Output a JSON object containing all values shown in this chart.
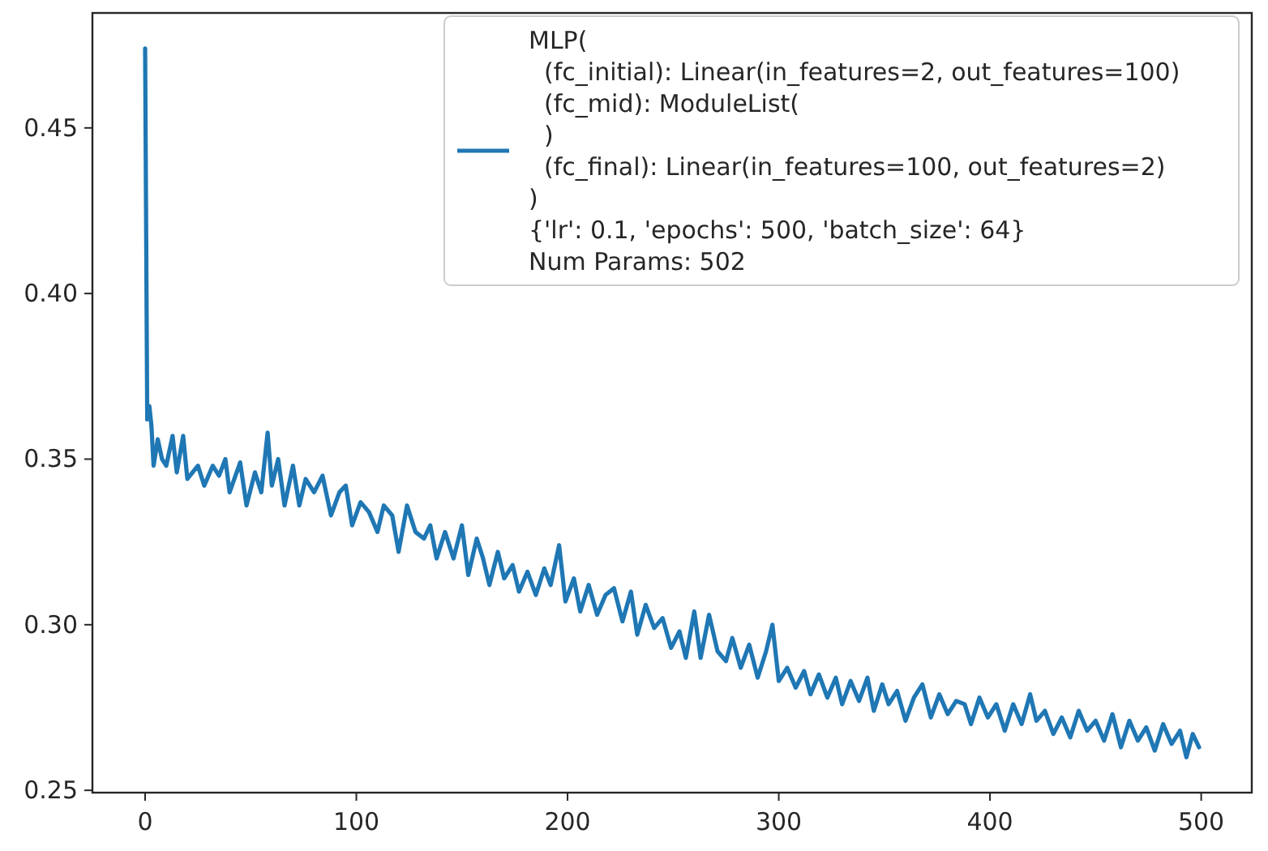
{
  "chart_data": {
    "type": "line",
    "xlim": [
      -24.95,
      523.95
    ],
    "ylim": [
      0.2493,
      0.4847
    ],
    "xticks": [
      0,
      100,
      200,
      300,
      400,
      500
    ],
    "yticks": [
      {
        "value": 0.25,
        "label": "0.25"
      },
      {
        "value": 0.3,
        "label": "0.30"
      },
      {
        "value": 0.35,
        "label": "0.35"
      },
      {
        "value": 0.4,
        "label": "0.40"
      },
      {
        "value": 0.45,
        "label": "0.45"
      }
    ],
    "legend": "top right",
    "grid": false,
    "series": [
      {
        "name": "MLP(\n  (fc_initial): Linear(in_features=2, out_features=100)\n  (fc_mid): ModuleList(\n  )\n  (fc_final): Linear(in_features=100, out_features=2)\n)\n{'lr': 0.1, 'epochs': 500, 'batch_size': 64}\nNum Params: 502",
        "color": "#1f77b4",
        "x": [
          0,
          1,
          2,
          3,
          4,
          6,
          8,
          10,
          13,
          15,
          18,
          20,
          25,
          28,
          32,
          35,
          38,
          40,
          45,
          48,
          52,
          55,
          58,
          60,
          63,
          66,
          70,
          73,
          76,
          80,
          84,
          88,
          92,
          95,
          98,
          102,
          106,
          110,
          113,
          117,
          120,
          124,
          128,
          132,
          135,
          138,
          142,
          146,
          150,
          153,
          157,
          160,
          163,
          167,
          170,
          174,
          177,
          181,
          185,
          189,
          192,
          196,
          199,
          203,
          206,
          210,
          214,
          218,
          222,
          226,
          230,
          233,
          237,
          241,
          245,
          249,
          253,
          256,
          260,
          263,
          267,
          271,
          275,
          278,
          282,
          286,
          290,
          294,
          297,
          300,
          304,
          308,
          312,
          315,
          319,
          323,
          327,
          330,
          334,
          338,
          342,
          345,
          349,
          352,
          356,
          360,
          364,
          368,
          372,
          376,
          380,
          384,
          388,
          391,
          395,
          399,
          403,
          407,
          411,
          415,
          419,
          422,
          426,
          430,
          434,
          438,
          442,
          446,
          450,
          454,
          458,
          462,
          466,
          470,
          474,
          478,
          482,
          486,
          490,
          493,
          496,
          499
        ],
        "values": [
          0.474,
          0.362,
          0.366,
          0.36,
          0.348,
          0.356,
          0.35,
          0.348,
          0.357,
          0.346,
          0.357,
          0.344,
          0.348,
          0.342,
          0.348,
          0.345,
          0.35,
          0.34,
          0.349,
          0.336,
          0.346,
          0.34,
          0.358,
          0.342,
          0.35,
          0.336,
          0.348,
          0.336,
          0.344,
          0.34,
          0.345,
          0.333,
          0.34,
          0.342,
          0.33,
          0.337,
          0.334,
          0.328,
          0.336,
          0.333,
          0.322,
          0.336,
          0.328,
          0.326,
          0.33,
          0.32,
          0.328,
          0.32,
          0.33,
          0.315,
          0.326,
          0.32,
          0.312,
          0.322,
          0.314,
          0.318,
          0.31,
          0.316,
          0.309,
          0.317,
          0.312,
          0.324,
          0.307,
          0.314,
          0.304,
          0.312,
          0.303,
          0.309,
          0.311,
          0.301,
          0.31,
          0.297,
          0.306,
          0.299,
          0.302,
          0.293,
          0.298,
          0.29,
          0.304,
          0.29,
          0.303,
          0.292,
          0.289,
          0.296,
          0.287,
          0.294,
          0.284,
          0.292,
          0.3,
          0.283,
          0.287,
          0.281,
          0.286,
          0.279,
          0.285,
          0.278,
          0.284,
          0.276,
          0.283,
          0.277,
          0.284,
          0.274,
          0.282,
          0.276,
          0.28,
          0.271,
          0.278,
          0.282,
          0.272,
          0.279,
          0.273,
          0.277,
          0.276,
          0.27,
          0.278,
          0.272,
          0.276,
          0.268,
          0.276,
          0.27,
          0.279,
          0.271,
          0.274,
          0.267,
          0.272,
          0.266,
          0.274,
          0.268,
          0.271,
          0.265,
          0.273,
          0.263,
          0.271,
          0.265,
          0.269,
          0.262,
          0.27,
          0.264,
          0.268,
          0.26,
          0.267,
          0.263
        ]
      }
    ]
  }
}
